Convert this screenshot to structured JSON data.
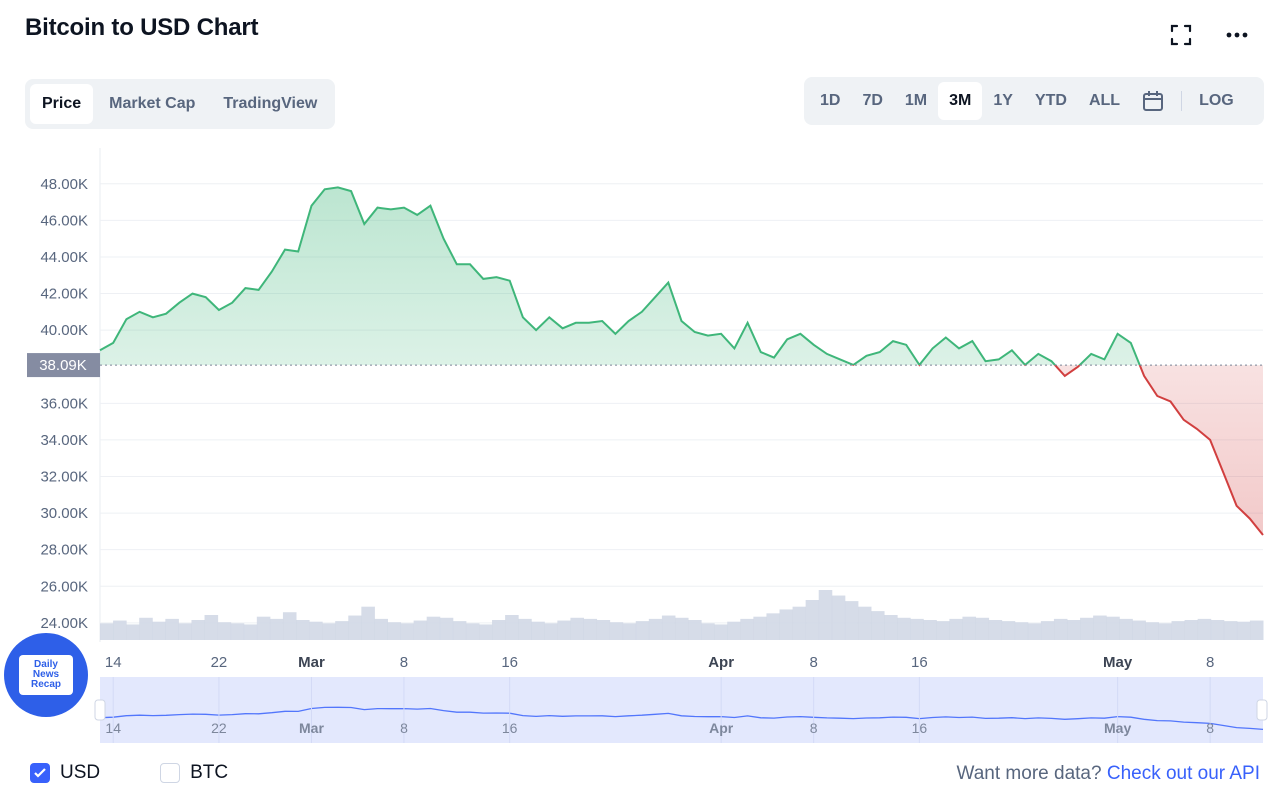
{
  "header": {
    "title": "Bitcoin to USD Chart"
  },
  "icons": {
    "fullscreen": "fullscreen-icon",
    "more": "more-icon",
    "calendar": "calendar-icon"
  },
  "tabs": [
    {
      "label": "Price",
      "active": true
    },
    {
      "label": "Market Cap",
      "active": false
    },
    {
      "label": "TradingView",
      "active": false
    }
  ],
  "ranges": [
    {
      "label": "1D",
      "active": false
    },
    {
      "label": "7D",
      "active": false
    },
    {
      "label": "1M",
      "active": false
    },
    {
      "label": "3M",
      "active": true
    },
    {
      "label": "1Y",
      "active": false
    },
    {
      "label": "YTD",
      "active": false
    },
    {
      "label": "ALL",
      "active": false
    }
  ],
  "log_label": "LOG",
  "footer": {
    "usd_label": "USD",
    "usd_checked": true,
    "btc_label": "BTC",
    "btc_checked": false,
    "more_data_text": "Want more data?",
    "api_link": "Check out our API"
  },
  "badge": {
    "line1": "Daily",
    "line2": "News",
    "line3": "Recap"
  },
  "colors": {
    "up": "#3fb67a",
    "down": "#d13f3f",
    "accent": "#3861fb",
    "volume": "#cfd6e4",
    "navigator": "#e3e8fd"
  },
  "chart_data": {
    "type": "line",
    "current_price_label": "38.09K",
    "reference_price": 38090,
    "ylim": [
      23500,
      49300
    ],
    "y_ticks": [
      {
        "value": 48000,
        "label": "48.00K"
      },
      {
        "value": 46000,
        "label": "46.00K"
      },
      {
        "value": 44000,
        "label": "44.00K"
      },
      {
        "value": 42000,
        "label": "42.00K"
      },
      {
        "value": 40000,
        "label": "40.00K"
      },
      {
        "value": 36000,
        "label": "36.00K"
      },
      {
        "value": 34000,
        "label": "34.00K"
      },
      {
        "value": 32000,
        "label": "32.00K"
      },
      {
        "value": 30000,
        "label": "30.00K"
      },
      {
        "value": 28000,
        "label": "28.00K"
      },
      {
        "value": 26000,
        "label": "26.00K"
      },
      {
        "value": 24000,
        "label": "24.00K"
      }
    ],
    "xlim": [
      "2022-02-13",
      "2022-05-12"
    ],
    "x_ticks": [
      {
        "date": "2022-02-14",
        "label": "14",
        "bold": false
      },
      {
        "date": "2022-02-22",
        "label": "22",
        "bold": false
      },
      {
        "date": "2022-03-01",
        "label": "Mar",
        "bold": true
      },
      {
        "date": "2022-03-08",
        "label": "8",
        "bold": false
      },
      {
        "date": "2022-03-16",
        "label": "16",
        "bold": false
      },
      {
        "date": "2022-04-01",
        "label": "Apr",
        "bold": true
      },
      {
        "date": "2022-04-08",
        "label": "8",
        "bold": false
      },
      {
        "date": "2022-04-16",
        "label": "16",
        "bold": false
      },
      {
        "date": "2022-05-01",
        "label": "May",
        "bold": true
      },
      {
        "date": "2022-05-08",
        "label": "8",
        "bold": false
      }
    ],
    "series": [
      {
        "points": [
          [
            "2022-02-13",
            38900
          ],
          [
            "2022-02-14",
            39300
          ],
          [
            "2022-02-15",
            40600
          ],
          [
            "2022-02-16",
            41000
          ],
          [
            "2022-02-17",
            40700
          ],
          [
            "2022-02-18",
            40900
          ],
          [
            "2022-02-19",
            41500
          ],
          [
            "2022-02-20",
            42000
          ],
          [
            "2022-02-21",
            41800
          ],
          [
            "2022-02-22",
            41100
          ],
          [
            "2022-02-23",
            41500
          ],
          [
            "2022-02-24",
            42300
          ],
          [
            "2022-02-25",
            42200
          ],
          [
            "2022-02-26",
            43200
          ],
          [
            "2022-02-27",
            44400
          ],
          [
            "2022-02-28",
            44300
          ],
          [
            "2022-03-01",
            46800
          ],
          [
            "2022-03-02",
            47700
          ],
          [
            "2022-03-03",
            47800
          ],
          [
            "2022-03-04",
            47600
          ],
          [
            "2022-03-05",
            45800
          ],
          [
            "2022-03-06",
            46700
          ],
          [
            "2022-03-07",
            46600
          ],
          [
            "2022-03-08",
            46700
          ],
          [
            "2022-03-09",
            46300
          ],
          [
            "2022-03-10",
            46800
          ],
          [
            "2022-03-11",
            45000
          ],
          [
            "2022-03-12",
            43600
          ],
          [
            "2022-03-13",
            43600
          ],
          [
            "2022-03-14",
            42800
          ],
          [
            "2022-03-15",
            42900
          ],
          [
            "2022-03-16",
            42700
          ],
          [
            "2022-03-17",
            40700
          ],
          [
            "2022-03-18",
            40000
          ],
          [
            "2022-03-19",
            40700
          ],
          [
            "2022-03-20",
            40100
          ],
          [
            "2022-03-21",
            40400
          ],
          [
            "2022-03-22",
            40400
          ],
          [
            "2022-03-23",
            40500
          ],
          [
            "2022-03-24",
            39800
          ],
          [
            "2022-03-25",
            40500
          ],
          [
            "2022-03-26",
            41000
          ],
          [
            "2022-03-27",
            41800
          ],
          [
            "2022-03-28",
            42600
          ],
          [
            "2022-03-29",
            40500
          ],
          [
            "2022-03-30",
            39900
          ],
          [
            "2022-03-31",
            39700
          ],
          [
            "2022-04-01",
            39800
          ],
          [
            "2022-04-02",
            39000
          ],
          [
            "2022-04-03",
            40400
          ],
          [
            "2022-04-04",
            38800
          ],
          [
            "2022-04-05",
            38500
          ],
          [
            "2022-04-06",
            39500
          ],
          [
            "2022-04-07",
            39800
          ],
          [
            "2022-04-08",
            39200
          ],
          [
            "2022-04-09",
            38700
          ],
          [
            "2022-04-10",
            38400
          ],
          [
            "2022-04-11",
            38100
          ],
          [
            "2022-04-12",
            38600
          ],
          [
            "2022-04-13",
            38800
          ],
          [
            "2022-04-14",
            39400
          ],
          [
            "2022-04-15",
            39200
          ],
          [
            "2022-04-16",
            38100
          ],
          [
            "2022-04-17",
            39000
          ],
          [
            "2022-04-18",
            39600
          ],
          [
            "2022-04-19",
            39000
          ],
          [
            "2022-04-20",
            39400
          ],
          [
            "2022-04-21",
            38300
          ],
          [
            "2022-04-22",
            38400
          ],
          [
            "2022-04-23",
            38900
          ],
          [
            "2022-04-24",
            38100
          ],
          [
            "2022-04-25",
            38700
          ],
          [
            "2022-04-26",
            38300
          ],
          [
            "2022-04-27",
            37500
          ],
          [
            "2022-04-28",
            38000
          ],
          [
            "2022-04-29",
            38700
          ],
          [
            "2022-04-30",
            38400
          ],
          [
            "2022-05-01",
            39800
          ],
          [
            "2022-05-02",
            39300
          ],
          [
            "2022-05-03",
            37500
          ],
          [
            "2022-05-04",
            36400
          ],
          [
            "2022-05-05",
            36100
          ],
          [
            "2022-05-06",
            35100
          ],
          [
            "2022-05-07",
            34600
          ],
          [
            "2022-05-08",
            34000
          ],
          [
            "2022-05-09",
            32200
          ],
          [
            "2022-05-10",
            30400
          ],
          [
            "2022-05-11",
            29700
          ],
          [
            "2022-05-12",
            28800
          ]
        ]
      }
    ],
    "volume": [
      30,
      35,
      28,
      40,
      33,
      38,
      30,
      36,
      45,
      32,
      30,
      28,
      42,
      38,
      50,
      36,
      33,
      30,
      34,
      44,
      60,
      38,
      32,
      30,
      35,
      42,
      40,
      34,
      30,
      28,
      36,
      45,
      38,
      33,
      30,
      35,
      40,
      38,
      36,
      32,
      30,
      34,
      38,
      44,
      40,
      36,
      30,
      28,
      33,
      38,
      42,
      48,
      55,
      60,
      72,
      90,
      80,
      70,
      60,
      52,
      45,
      40,
      38,
      36,
      34,
      38,
      42,
      40,
      36,
      34,
      32,
      30,
      34,
      38,
      36,
      40,
      44,
      42,
      38,
      35,
      32,
      30,
      34,
      36,
      38,
      36,
      34,
      33,
      35
    ]
  }
}
